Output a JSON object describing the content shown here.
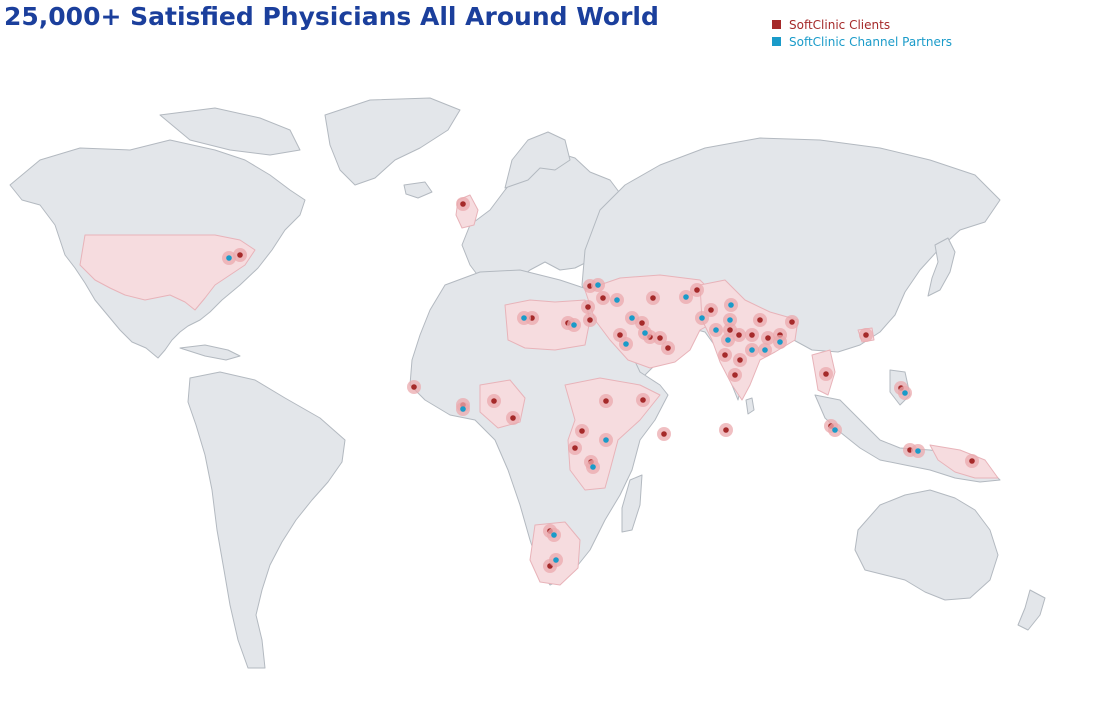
{
  "title": "25,000+ Satisfied Physicians All Around World",
  "legend": {
    "clients": {
      "label": "SoftClinic Clients",
      "color": "#a52a2a"
    },
    "partners": {
      "label": "SoftClinic Channel Partners",
      "color": "#1a9bc9"
    }
  },
  "colors": {
    "title": "#1b3f9c",
    "land": "#e3e6ea",
    "highlight_land": "#f6dcdf",
    "marker_halo": "#eba9ae"
  }
}
